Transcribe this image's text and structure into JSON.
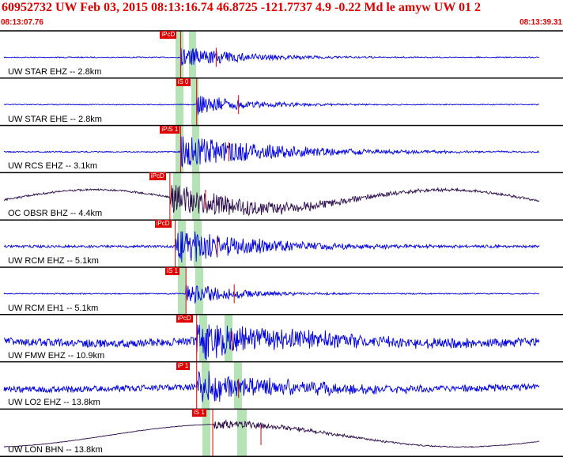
{
  "header": {
    "title": "60952732 UW Feb 03, 2015 08:13:16.74   46.8725 -121.7737  4.9 -0.22 Md le amyw UW 01   2",
    "start_time": "08:13:07.76",
    "end_time": "08:13:39.31"
  },
  "colors": {
    "header": "#e00000",
    "trace_blue": "#0000e0",
    "trace_dark": "#2a0a4a",
    "pick": "#e00000",
    "window": "#b6e3b6",
    "separator": "#000000"
  },
  "traces": [
    {
      "label": "UW STAR EHZ -- 2.8km",
      "color": "#0000e0",
      "noise": 0.6,
      "lowfreq": 0,
      "pick": "iPcD",
      "onset": 0.33,
      "amp": 14,
      "decay": 0.12
    },
    {
      "label": "UW STAR EHE -- 2.8km",
      "color": "#0000e0",
      "noise": 0.6,
      "lowfreq": 0,
      "pick": "iS 0",
      "onset": 0.36,
      "amp": 13,
      "decay": 0.1
    },
    {
      "label": "UW RCS EHZ -- 3.1km",
      "color": "#0000e0",
      "noise": 0.8,
      "lowfreq": 0,
      "pick": "iPiS 1",
      "onset": 0.33,
      "amp": 22,
      "decay": 0.18
    },
    {
      "label": "OC OBSR BHZ -- 4.4km",
      "color": "#2a0a4a",
      "noise": 1.2,
      "lowfreq": 12,
      "pick": "iPcD",
      "onset": 0.31,
      "amp": 20,
      "decay": 0.2
    },
    {
      "label": "UW RCM EHZ -- 5.1km",
      "color": "#0000e0",
      "noise": 1.6,
      "lowfreq": 0,
      "pick": "iPcD",
      "onset": 0.32,
      "amp": 25,
      "decay": 0.15
    },
    {
      "label": "UW RCM EH1 -- 5.1km",
      "color": "#0000e0",
      "noise": 0.7,
      "lowfreq": 0,
      "pick": "iS 1",
      "onset": 0.34,
      "amp": 14,
      "decay": 0.1
    },
    {
      "label": "UW FMW EHZ -- 10.9km",
      "color": "#0000e0",
      "noise": 5.0,
      "lowfreq": 4,
      "pick": "iPcD",
      "onset": 0.36,
      "amp": 24,
      "decay": 0.2
    },
    {
      "label": "UW LO2 EHZ -- 13.8km",
      "color": "#0000e0",
      "noise": 4.0,
      "lowfreq": 2,
      "pick": "iP 1",
      "onset": 0.36,
      "amp": 22,
      "decay": 0.18
    },
    {
      "label": "UW LON BHN -- 13.8km",
      "color": "#2a0a4a",
      "noise": 0.3,
      "lowfreq": 18,
      "pick": "iS 1",
      "onset": 0.39,
      "amp": 6,
      "decay": 0.2
    }
  ]
}
